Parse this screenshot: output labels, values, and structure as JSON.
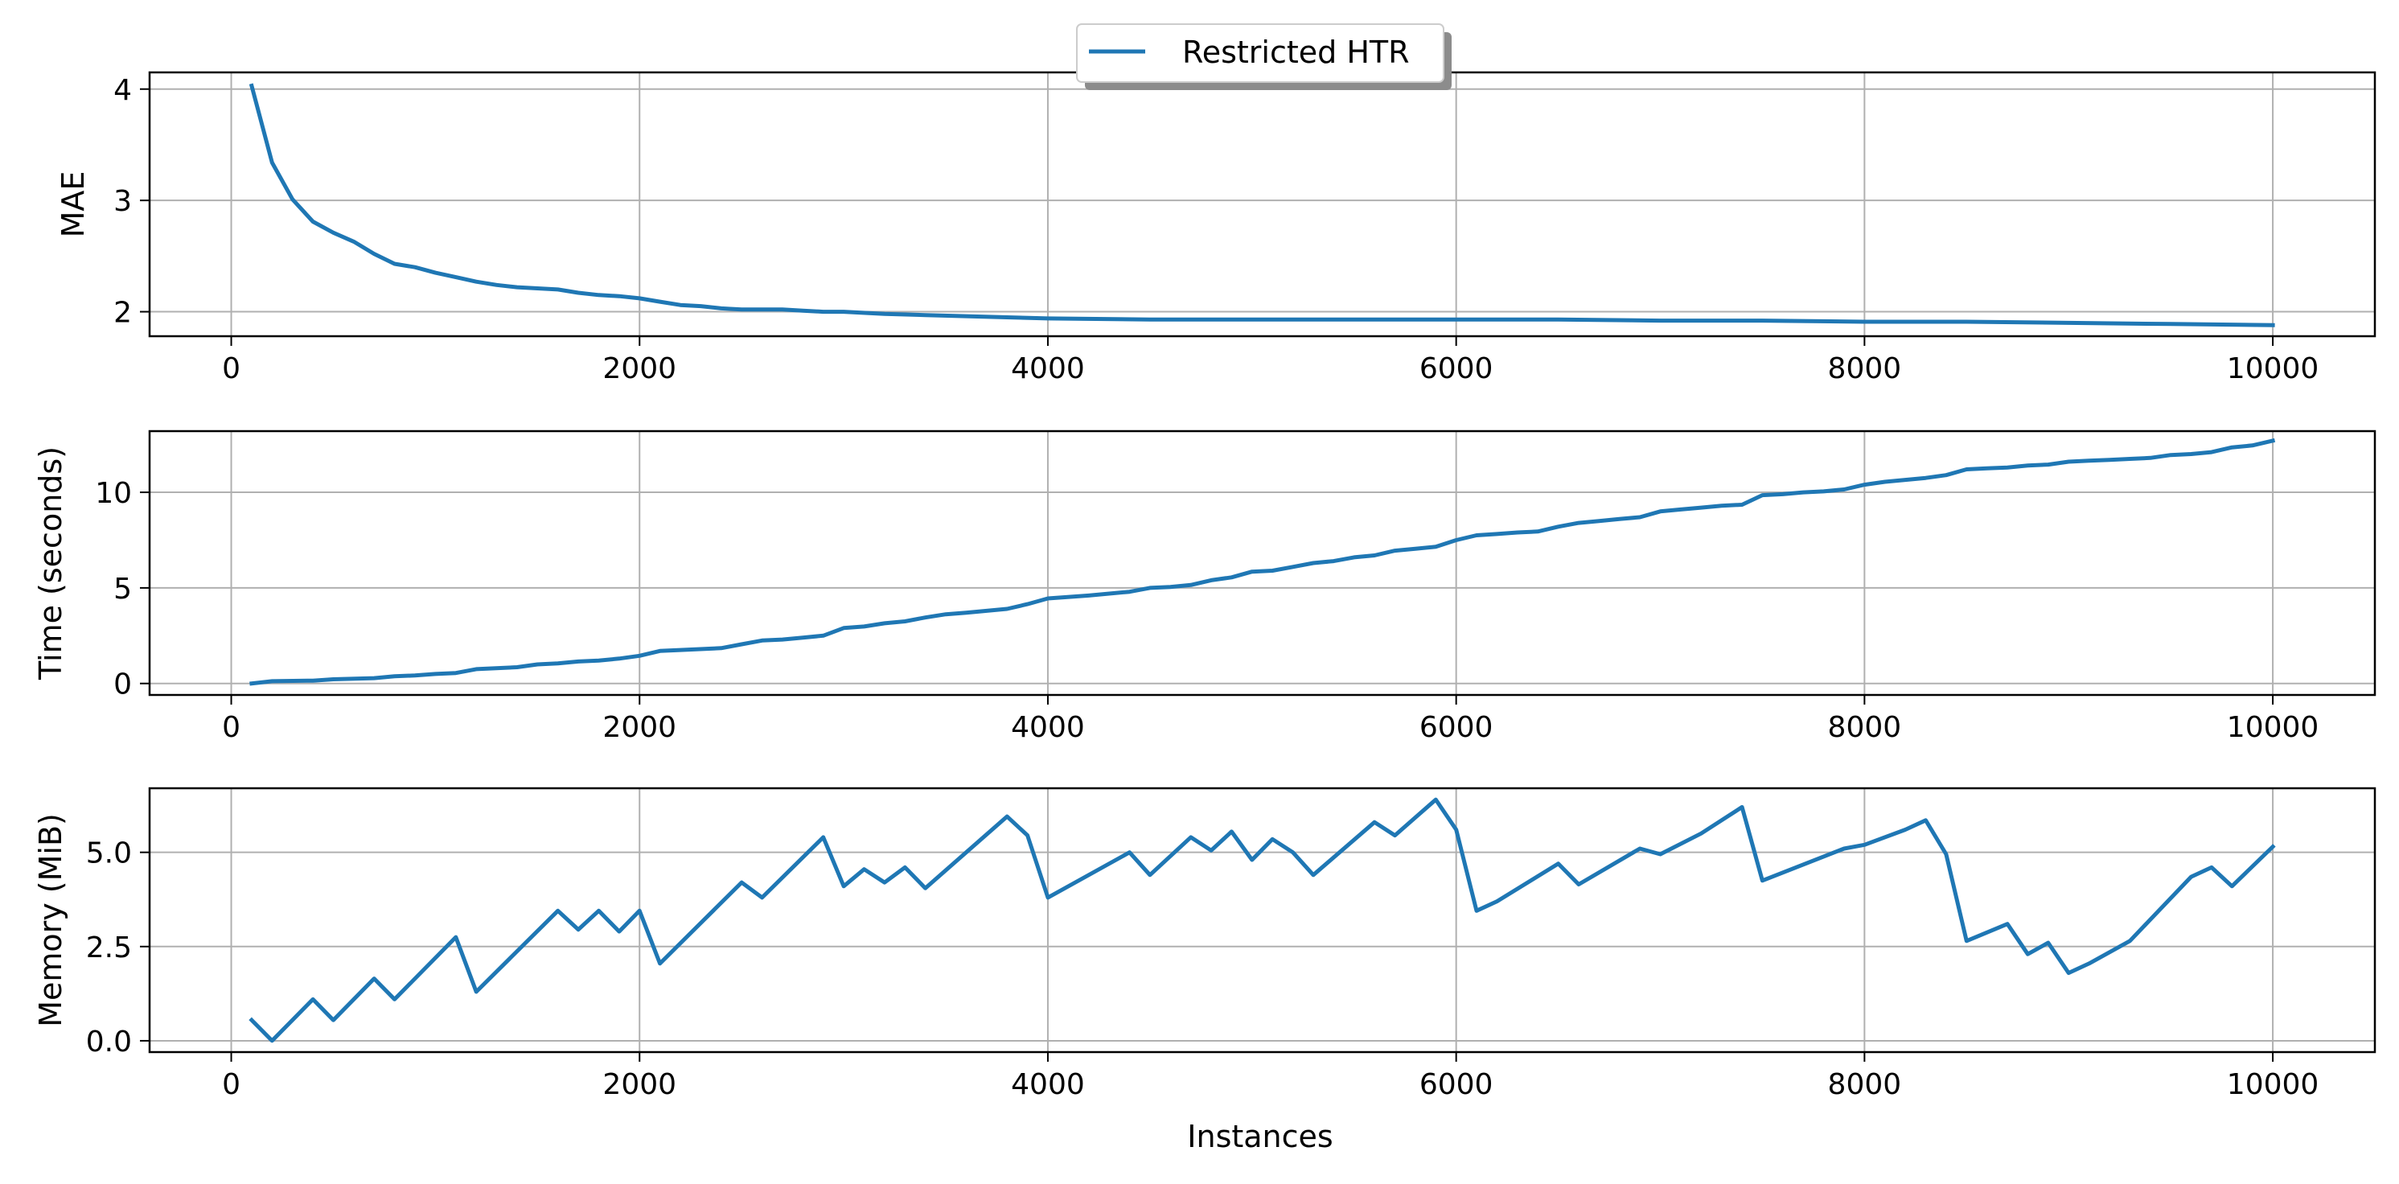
{
  "chart_data": {
    "type": "line",
    "layout": "3 stacked subplots sharing x",
    "legend": {
      "entries": [
        "Restricted HTR"
      ],
      "placement": "top-center",
      "color": "#1f77b4"
    },
    "grid": true,
    "xlabel": "Instances",
    "x_ticks": [
      0,
      2000,
      4000,
      6000,
      8000,
      10000
    ],
    "xlim": [
      -400,
      10500
    ],
    "subplots": [
      {
        "ylabel": "MAE",
        "ylim": [
          1.78,
          4.15
        ],
        "y_ticks": [
          2,
          3,
          4
        ],
        "y_tick_labels": [
          "2",
          "3",
          "4"
        ],
        "series": [
          {
            "name": "Restricted HTR",
            "x": [
              100,
              200,
              300,
              400,
              500,
              600,
              700,
              800,
              900,
              1000,
              1100,
              1200,
              1300,
              1400,
              1500,
              1600,
              1700,
              1800,
              1900,
              2000,
              2100,
              2200,
              2300,
              2400,
              2500,
              2600,
              2700,
              2800,
              2900,
              3000,
              3200,
              3400,
              3600,
              3800,
              4000,
              4500,
              5000,
              5500,
              6000,
              6500,
              7000,
              7500,
              8000,
              8500,
              9000,
              9500,
              10000
            ],
            "y": [
              4.03,
              3.34,
              3.01,
              2.81,
              2.71,
              2.63,
              2.52,
              2.43,
              2.4,
              2.35,
              2.31,
              2.27,
              2.24,
              2.22,
              2.21,
              2.2,
              2.17,
              2.15,
              2.14,
              2.12,
              2.09,
              2.06,
              2.05,
              2.03,
              2.02,
              2.02,
              2.02,
              2.01,
              2.0,
              2.0,
              1.98,
              1.97,
              1.96,
              1.95,
              1.94,
              1.93,
              1.93,
              1.93,
              1.93,
              1.93,
              1.92,
              1.92,
              1.91,
              1.91,
              1.9,
              1.89,
              1.88
            ]
          }
        ]
      },
      {
        "ylabel": "Time (seconds)",
        "ylim": [
          -0.6,
          13.2
        ],
        "y_ticks": [
          0,
          5,
          10
        ],
        "y_tick_labels": [
          "0",
          "5",
          "10"
        ],
        "series": [
          {
            "name": "Restricted HTR",
            "x": [
              100,
              200,
              400,
              500,
              700,
              800,
              900,
              1000,
              1100,
              1200,
              1400,
              1500,
              1600,
              1700,
              1800,
              1900,
              2000,
              2100,
              2200,
              2400,
              2500,
              2600,
              2700,
              2800,
              2900,
              3000,
              3100,
              3200,
              3300,
              3400,
              3500,
              3600,
              3700,
              3800,
              3900,
              4000,
              4200,
              4400,
              4500,
              4600,
              4700,
              4800,
              4900,
              5000,
              5100,
              5200,
              5300,
              5400,
              5500,
              5600,
              5700,
              5800,
              5900,
              6000,
              6100,
              6200,
              6300,
              6400,
              6500,
              6600,
              6700,
              6800,
              6900,
              7000,
              7100,
              7200,
              7300,
              7400,
              7500,
              7600,
              7700,
              7800,
              7900,
              8000,
              8100,
              8200,
              8300,
              8400,
              8500,
              8600,
              8700,
              8800,
              8900,
              9000,
              9100,
              9200,
              9300,
              9400,
              9500,
              9600,
              9700,
              9800,
              9900,
              10000
            ],
            "y": [
              0.0,
              0.12,
              0.15,
              0.22,
              0.28,
              0.38,
              0.42,
              0.5,
              0.55,
              0.75,
              0.85,
              1.0,
              1.05,
              1.15,
              1.2,
              1.3,
              1.45,
              1.7,
              1.75,
              1.85,
              2.05,
              2.25,
              2.3,
              2.4,
              2.5,
              2.9,
              2.98,
              3.15,
              3.25,
              3.45,
              3.62,
              3.7,
              3.8,
              3.9,
              4.15,
              4.45,
              4.6,
              4.8,
              5.0,
              5.05,
              5.15,
              5.4,
              5.55,
              5.85,
              5.9,
              6.1,
              6.3,
              6.4,
              6.6,
              6.7,
              6.95,
              7.05,
              7.15,
              7.5,
              7.75,
              7.82,
              7.9,
              7.95,
              8.2,
              8.4,
              8.5,
              8.6,
              8.7,
              9.0,
              9.1,
              9.2,
              9.3,
              9.35,
              9.85,
              9.9,
              10.0,
              10.05,
              10.15,
              10.4,
              10.55,
              10.65,
              10.75,
              10.9,
              11.2,
              11.25,
              11.3,
              11.4,
              11.45,
              11.6,
              11.65,
              11.7,
              11.75,
              11.8,
              11.95,
              12.0,
              12.1,
              12.35,
              12.45,
              12.7
            ]
          }
        ]
      },
      {
        "ylabel": "Memory (MiB)",
        "ylim": [
          -0.3,
          6.7
        ],
        "y_ticks": [
          0,
          2.5,
          5
        ],
        "y_tick_labels": [
          "0.0",
          "2.5",
          "5.0"
        ],
        "series": [
          {
            "name": "Restricted HTR",
            "x": [
              100,
              200,
              400,
              500,
              700,
              800,
              1100,
              1200,
              1600,
              1700,
              1800,
              1900,
              2000,
              2100,
              2500,
              2600,
              2900,
              3000,
              3100,
              3200,
              3300,
              3400,
              3800,
              3900,
              4000,
              4400,
              4500,
              4700,
              4800,
              4900,
              5000,
              5100,
              5200,
              5300,
              5600,
              5700,
              5900,
              6000,
              6100,
              6200,
              6500,
              6600,
              6900,
              7000,
              7200,
              7400,
              7500,
              7900,
              8000,
              8200,
              8300,
              8400,
              8500,
              8700,
              8800,
              8900,
              9000,
              9100,
              9300,
              9600,
              9700,
              9800,
              10000
            ],
            "y": [
              0.55,
              0.0,
              1.1,
              0.55,
              1.65,
              1.1,
              2.75,
              1.3,
              3.45,
              2.95,
              3.45,
              2.9,
              3.45,
              2.05,
              4.2,
              3.8,
              5.4,
              4.1,
              4.55,
              4.2,
              4.6,
              4.05,
              5.95,
              5.45,
              3.8,
              5.0,
              4.4,
              5.4,
              5.05,
              5.55,
              4.8,
              5.35,
              5.0,
              4.4,
              5.8,
              5.45,
              6.4,
              5.6,
              3.45,
              3.7,
              4.7,
              4.15,
              5.1,
              4.95,
              5.5,
              6.2,
              4.25,
              5.1,
              5.2,
              5.6,
              5.85,
              4.95,
              2.65,
              3.1,
              2.3,
              2.6,
              1.8,
              2.05,
              2.65,
              4.35,
              4.6,
              4.1,
              5.15
            ]
          }
        ]
      }
    ]
  }
}
